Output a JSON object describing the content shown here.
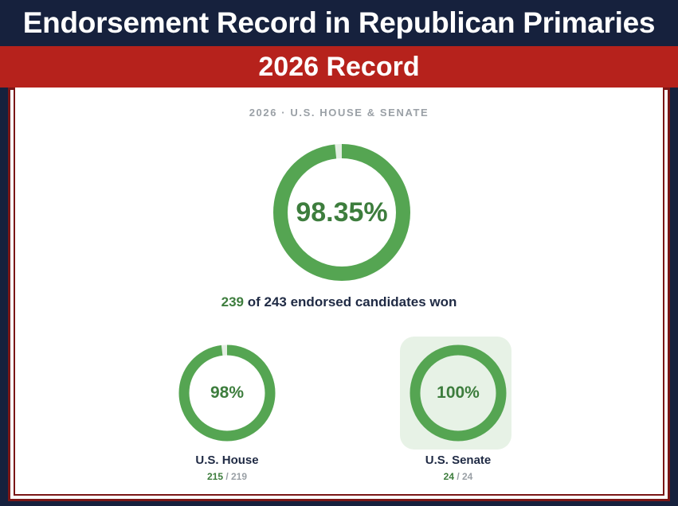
{
  "header": {
    "title": "Endorsement Record in Republican Primaries"
  },
  "banner": {
    "title": "2026 Record"
  },
  "card": {
    "subtitle": "2026 · U.S. HOUSE & SENATE",
    "overall": {
      "percent_label": "98.35%",
      "fraction": 0.9835,
      "won": "239",
      "summary_rest": " of 243 endorsed candidates won"
    },
    "house": {
      "percent_label": "98%",
      "fraction": 0.98,
      "label": "U.S. House",
      "won": "215",
      "total_text": " / 219"
    },
    "senate": {
      "percent_label": "100%",
      "fraction": 1.0,
      "label": "U.S. Senate",
      "won": "24",
      "total_text": " / 24"
    }
  },
  "colors": {
    "navy": "#16213d",
    "banner_red": "#b6221c",
    "frame_maroon": "#7a1616",
    "ring_green": "#55a552",
    "text_green": "#3d7d3d",
    "senate_highlight": "#e7f2e6",
    "muted_gray": "#9aa0a6"
  }
}
